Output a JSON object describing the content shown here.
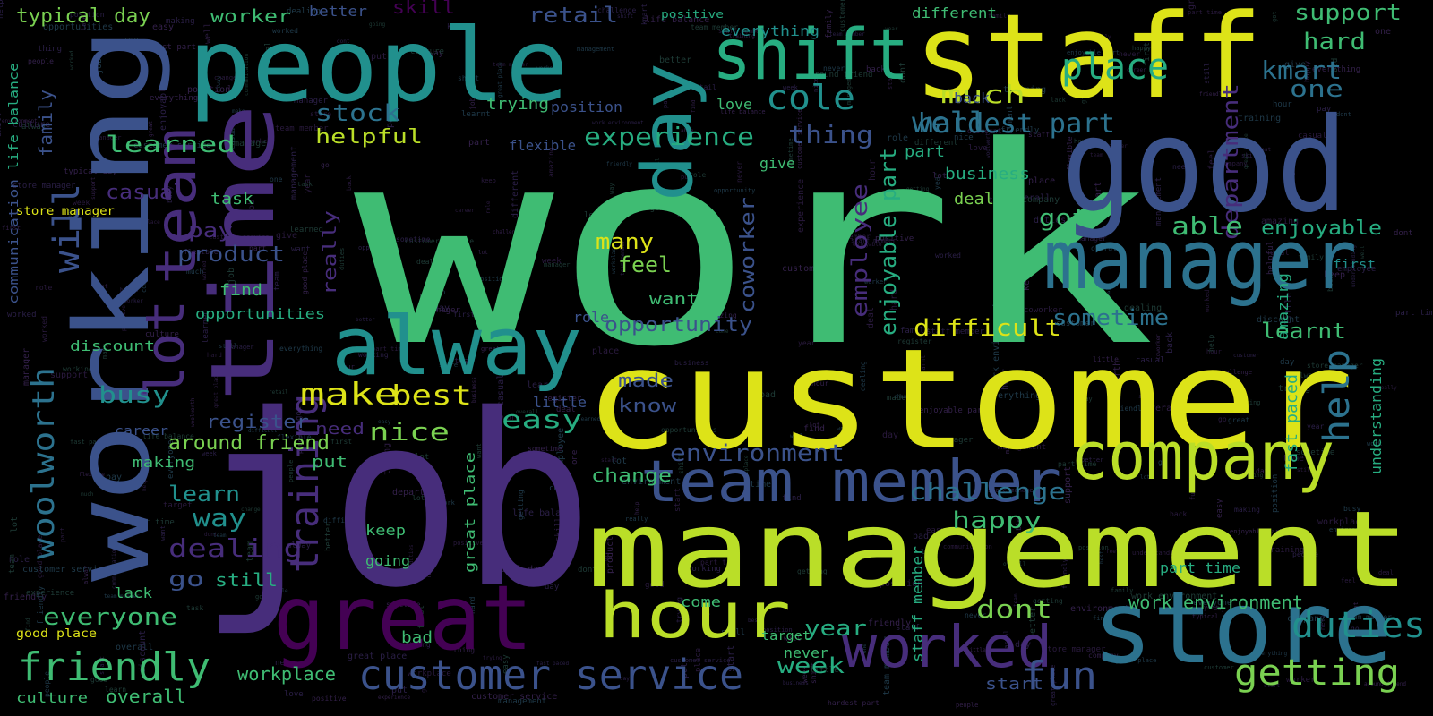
{
  "palette": {
    "background": "#000000",
    "yellow": "#dde318",
    "lime": "#bade28",
    "green": "#7ad151",
    "mint": "#3fbc73",
    "teal": "#27ad81",
    "cyan": "#21908d",
    "blue": "#2c728e",
    "slate": "#3b528b",
    "indigo": "#472d7b",
    "purple": "#440154",
    "dim": "#2a1a3e"
  },
  "words": [
    {
      "text": "work",
      "color": "mint"
    },
    {
      "text": "customer",
      "color": "yellow"
    },
    {
      "text": "job",
      "color": "indigo"
    },
    {
      "text": "management",
      "color": "lime"
    },
    {
      "text": "staff",
      "color": "yellow"
    },
    {
      "text": "people",
      "color": "cyan"
    },
    {
      "text": "good",
      "color": "slate"
    },
    {
      "text": "working",
      "color": "slate"
    },
    {
      "text": "time",
      "color": "indigo"
    },
    {
      "text": "store",
      "color": "blue"
    },
    {
      "text": "great",
      "color": "purple"
    },
    {
      "text": "manager",
      "color": "blue"
    },
    {
      "text": "team member",
      "color": "slate"
    },
    {
      "text": "company",
      "color": "lime"
    },
    {
      "text": "alway",
      "color": "cyan"
    },
    {
      "text": "shift",
      "color": "teal"
    },
    {
      "text": "day",
      "color": "cyan"
    },
    {
      "text": "team",
      "color": "indigo"
    },
    {
      "text": "lot",
      "color": "indigo"
    },
    {
      "text": "hour",
      "color": "lime"
    },
    {
      "text": "worked",
      "color": "indigo"
    },
    {
      "text": "customer service",
      "color": "slate"
    },
    {
      "text": "friendly",
      "color": "mint"
    },
    {
      "text": "training",
      "color": "indigo"
    },
    {
      "text": "help",
      "color": "blue"
    },
    {
      "text": "getting",
      "color": "green"
    },
    {
      "text": "fun",
      "color": "slate"
    },
    {
      "text": "woolworth",
      "color": "blue"
    },
    {
      "text": "place",
      "color": "teal"
    },
    {
      "text": "cole",
      "color": "cyan"
    },
    {
      "text": "will",
      "color": "slate"
    },
    {
      "text": "duties",
      "color": "cyan"
    },
    {
      "text": "make",
      "color": "yellow"
    },
    {
      "text": "learned",
      "color": "mint"
    },
    {
      "text": "hardest part",
      "color": "blue"
    },
    {
      "text": "experience",
      "color": "teal"
    },
    {
      "text": "environment",
      "color": "slate"
    },
    {
      "text": "challenge",
      "color": "blue"
    },
    {
      "text": "everyone",
      "color": "mint"
    },
    {
      "text": "dealing",
      "color": "indigo"
    },
    {
      "text": "department",
      "color": "indigo"
    },
    {
      "text": "well",
      "color": "blue"
    },
    {
      "text": "much",
      "color": "lime"
    },
    {
      "text": "stock",
      "color": "blue"
    },
    {
      "text": "thing",
      "color": "slate"
    },
    {
      "text": "helpful",
      "color": "lime"
    },
    {
      "text": "difficult",
      "color": "yellow"
    },
    {
      "text": "enjoyable part",
      "color": "teal"
    },
    {
      "text": "employee",
      "color": "indigo"
    },
    {
      "text": "coworker",
      "color": "slate"
    },
    {
      "text": "opportunity",
      "color": "slate"
    },
    {
      "text": "happy",
      "color": "mint"
    },
    {
      "text": "nice",
      "color": "green"
    },
    {
      "text": "easy",
      "color": "teal"
    },
    {
      "text": "best",
      "color": "yellow"
    },
    {
      "text": "product",
      "color": "slate"
    },
    {
      "text": "busy",
      "color": "cyan"
    },
    {
      "text": "register",
      "color": "slate"
    },
    {
      "text": "around friend",
      "color": "green"
    },
    {
      "text": "learn",
      "color": "cyan"
    },
    {
      "text": "way",
      "color": "cyan"
    },
    {
      "text": "go",
      "color": "slate"
    },
    {
      "text": "still",
      "color": "teal"
    },
    {
      "text": "workplace",
      "color": "mint"
    },
    {
      "text": "overall",
      "color": "mint"
    },
    {
      "text": "culture",
      "color": "mint"
    },
    {
      "text": "week",
      "color": "teal"
    },
    {
      "text": "year",
      "color": "teal"
    },
    {
      "text": "dont",
      "color": "green"
    },
    {
      "text": "start",
      "color": "slate"
    },
    {
      "text": "work environment",
      "color": "mint"
    },
    {
      "text": "part time",
      "color": "teal"
    },
    {
      "text": "sometime",
      "color": "blue"
    },
    {
      "text": "learnt",
      "color": "mint"
    },
    {
      "text": "enjoyable",
      "color": "teal"
    },
    {
      "text": "able",
      "color": "mint"
    },
    {
      "text": "got",
      "color": "mint"
    },
    {
      "text": "kmart",
      "color": "blue"
    },
    {
      "text": "hard",
      "color": "mint"
    },
    {
      "text": "support",
      "color": "mint"
    },
    {
      "text": "retail",
      "color": "slate"
    },
    {
      "text": "skill",
      "color": "purple"
    },
    {
      "text": "worker",
      "color": "mint"
    },
    {
      "text": "typical day",
      "color": "green"
    },
    {
      "text": "better",
      "color": "slate"
    },
    {
      "text": "different",
      "color": "mint"
    },
    {
      "text": "everything",
      "color": "cyan"
    },
    {
      "text": "positive",
      "color": "teal"
    },
    {
      "text": "many",
      "color": "yellow"
    },
    {
      "text": "feel",
      "color": "green"
    },
    {
      "text": "pay",
      "color": "indigo"
    },
    {
      "text": "casual",
      "color": "indigo"
    },
    {
      "text": "family",
      "color": "slate"
    },
    {
      "text": "task",
      "color": "mint"
    },
    {
      "text": "find",
      "color": "mint"
    },
    {
      "text": "really",
      "color": "indigo"
    },
    {
      "text": "made",
      "color": "slate"
    },
    {
      "text": "know",
      "color": "slate"
    },
    {
      "text": "need",
      "color": "indigo"
    },
    {
      "text": "put",
      "color": "mint"
    },
    {
      "text": "change",
      "color": "mint"
    },
    {
      "text": "little",
      "color": "slate"
    },
    {
      "text": "want",
      "color": "mint"
    },
    {
      "text": "role",
      "color": "slate"
    },
    {
      "text": "give",
      "color": "mint"
    },
    {
      "text": "love",
      "color": "mint"
    },
    {
      "text": "trying",
      "color": "mint"
    },
    {
      "text": "position",
      "color": "slate"
    },
    {
      "text": "flexible",
      "color": "slate"
    },
    {
      "text": "business",
      "color": "teal"
    },
    {
      "text": "deal",
      "color": "green"
    },
    {
      "text": "one",
      "color": "blue"
    },
    {
      "text": "part",
      "color": "teal"
    },
    {
      "text": "back",
      "color": "slate"
    },
    {
      "text": "opportunities",
      "color": "teal"
    },
    {
      "text": "discount",
      "color": "mint"
    },
    {
      "text": "career",
      "color": "slate"
    },
    {
      "text": "making",
      "color": "mint"
    },
    {
      "text": "lack",
      "color": "mint"
    },
    {
      "text": "keep",
      "color": "mint"
    },
    {
      "text": "going",
      "color": "mint"
    },
    {
      "text": "come",
      "color": "mint"
    },
    {
      "text": "never",
      "color": "mint"
    },
    {
      "text": "target",
      "color": "mint"
    },
    {
      "text": "bad",
      "color": "mint"
    },
    {
      "text": "fast paced",
      "color": "teal"
    },
    {
      "text": "understanding",
      "color": "teal"
    },
    {
      "text": "amazing",
      "color": "teal"
    },
    {
      "text": "first",
      "color": "cyan"
    },
    {
      "text": "staff member",
      "color": "teal"
    },
    {
      "text": "great place",
      "color": "mint"
    },
    {
      "text": "communication",
      "color": "slate"
    },
    {
      "text": "life balance",
      "color": "teal"
    },
    {
      "text": "store manager",
      "color": "yellow"
    },
    {
      "text": "good place",
      "color": "yellow"
    }
  ]
}
